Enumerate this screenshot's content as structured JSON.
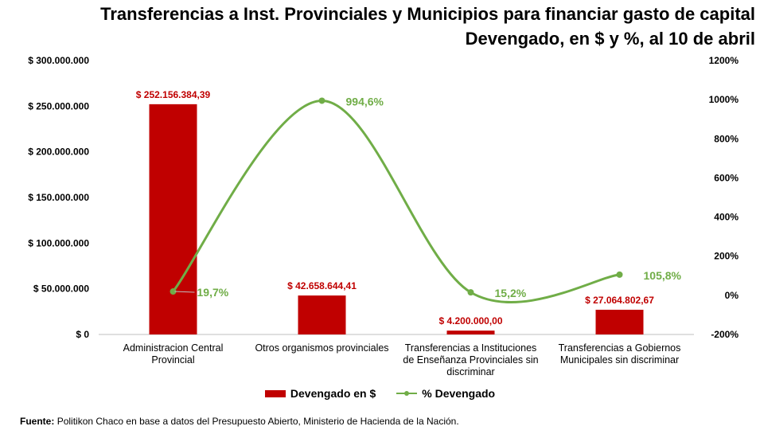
{
  "title_line1": "Transferencias a Inst. Provinciales y Municipios para financiar gasto de capital",
  "title_line2": "Devengado, en $ y %, al 10 de abril",
  "legend": {
    "bar": "Devengado en $",
    "line": "% Devengado"
  },
  "source_label": "Fuente:",
  "source_text": "Politikon Chaco en base a datos del Presupuesto Abierto, Ministerio de Hacienda de la Nación.",
  "colors": {
    "bar": "#c00000",
    "line": "#70ad47",
    "bar_label": "#c00000",
    "line_label": "#70ad47"
  },
  "chart_data": {
    "type": "bar",
    "categories": [
      [
        "Administracion Central",
        "Provincial"
      ],
      [
        "Otros organismos provinciales"
      ],
      [
        "Transferencias a Instituciones",
        "de Enseñanza Provinciales sin",
        "discriminar"
      ],
      [
        "Transferencias a Gobiernos",
        "Municipales sin discriminar"
      ]
    ],
    "series": [
      {
        "name": "Devengado en $",
        "type": "bar",
        "axis": "left",
        "values": [
          252156384.39,
          42658644.41,
          4200000.0,
          27064802.67
        ],
        "labels": [
          "$ 252.156.384,39",
          "$ 42.658.644,41",
          "$ 4.200.000,00",
          "$ 27.064.802,67"
        ]
      },
      {
        "name": "% Devengado",
        "type": "line",
        "axis": "right",
        "values": [
          19.7,
          994.6,
          15.2,
          105.8
        ],
        "labels": [
          "19,7%",
          "994,6%",
          "15,2%",
          "105,8%"
        ]
      }
    ],
    "y_left": {
      "min": 0,
      "max": 300000000,
      "step": 50000000,
      "ticks": [
        "$ 0",
        "$ 50.000.000",
        "$ 100.000.000",
        "$ 150.000.000",
        "$ 200.000.000",
        "$ 250.000.000",
        "$ 300.000.000"
      ]
    },
    "y_right": {
      "min": -200,
      "max": 1200,
      "step": 200,
      "ticks": [
        "-200%",
        "0%",
        "200%",
        "400%",
        "600%",
        "800%",
        "1000%",
        "1200%"
      ]
    },
    "grid": false,
    "legend_position": "bottom"
  }
}
